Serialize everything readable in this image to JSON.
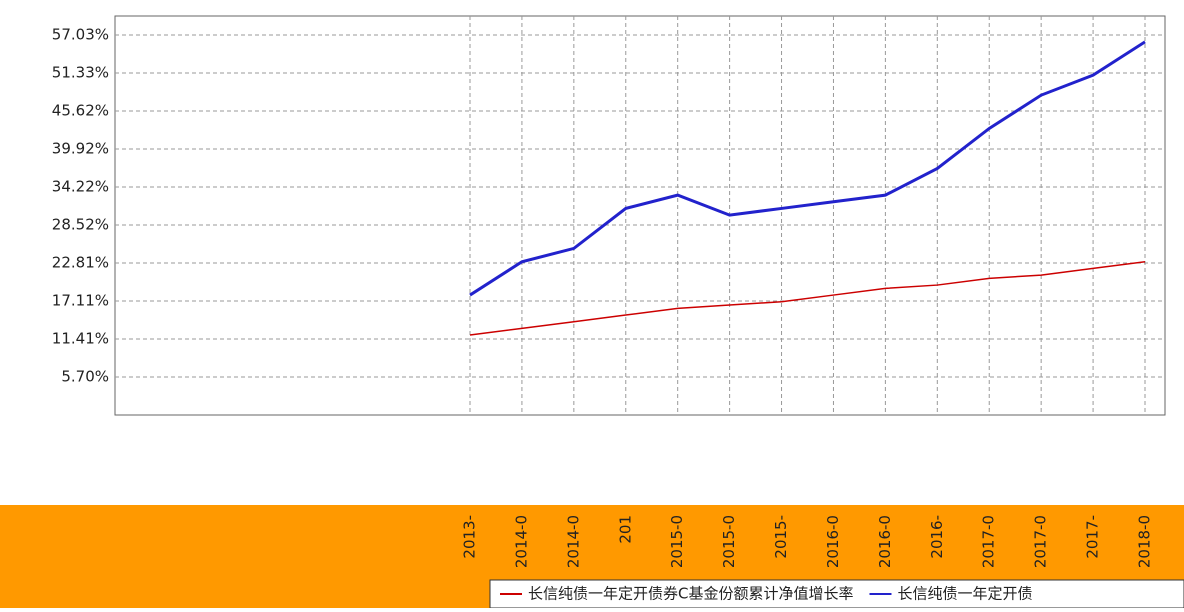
{
  "chart_data": {
    "type": "line",
    "categories": [
      "2013-",
      "2014-0",
      "2014-0",
      "201",
      "2015-0",
      "2015-0",
      "2015-",
      "2016-0",
      "2016-0",
      "2016-",
      "2017-0",
      "2017-0",
      "2017-",
      "2018-0"
    ],
    "series": [
      {
        "name": "长信纯债一年定开债券C基金份额累计净值增长率",
        "color": "#cc0000",
        "values": [
          12,
          13,
          14,
          15,
          16,
          16.5,
          17,
          18,
          19,
          19.5,
          20.5,
          21,
          22,
          23
        ]
      },
      {
        "name": "长信纯债一年定开债",
        "color": "#2222cc",
        "values": [
          18,
          23,
          25,
          31,
          33,
          30,
          31,
          32,
          33,
          37,
          43,
          48,
          51,
          56
        ]
      }
    ],
    "ylim": [
      0,
      59.88
    ],
    "yticks": [
      {
        "value": 5.7,
        "label": "5.70%"
      },
      {
        "value": 11.41,
        "label": "11.41%"
      },
      {
        "value": 17.11,
        "label": "17.11%"
      },
      {
        "value": 22.81,
        "label": "22.81%"
      },
      {
        "value": 28.52,
        "label": "28.52%"
      },
      {
        "value": 34.22,
        "label": "34.22%"
      },
      {
        "value": 39.92,
        "label": "39.92%"
      },
      {
        "value": 45.62,
        "label": "45.62%"
      },
      {
        "value": 51.33,
        "label": "51.33%"
      },
      {
        "value": 57.03,
        "label": "57.03%"
      }
    ],
    "grid": true
  }
}
